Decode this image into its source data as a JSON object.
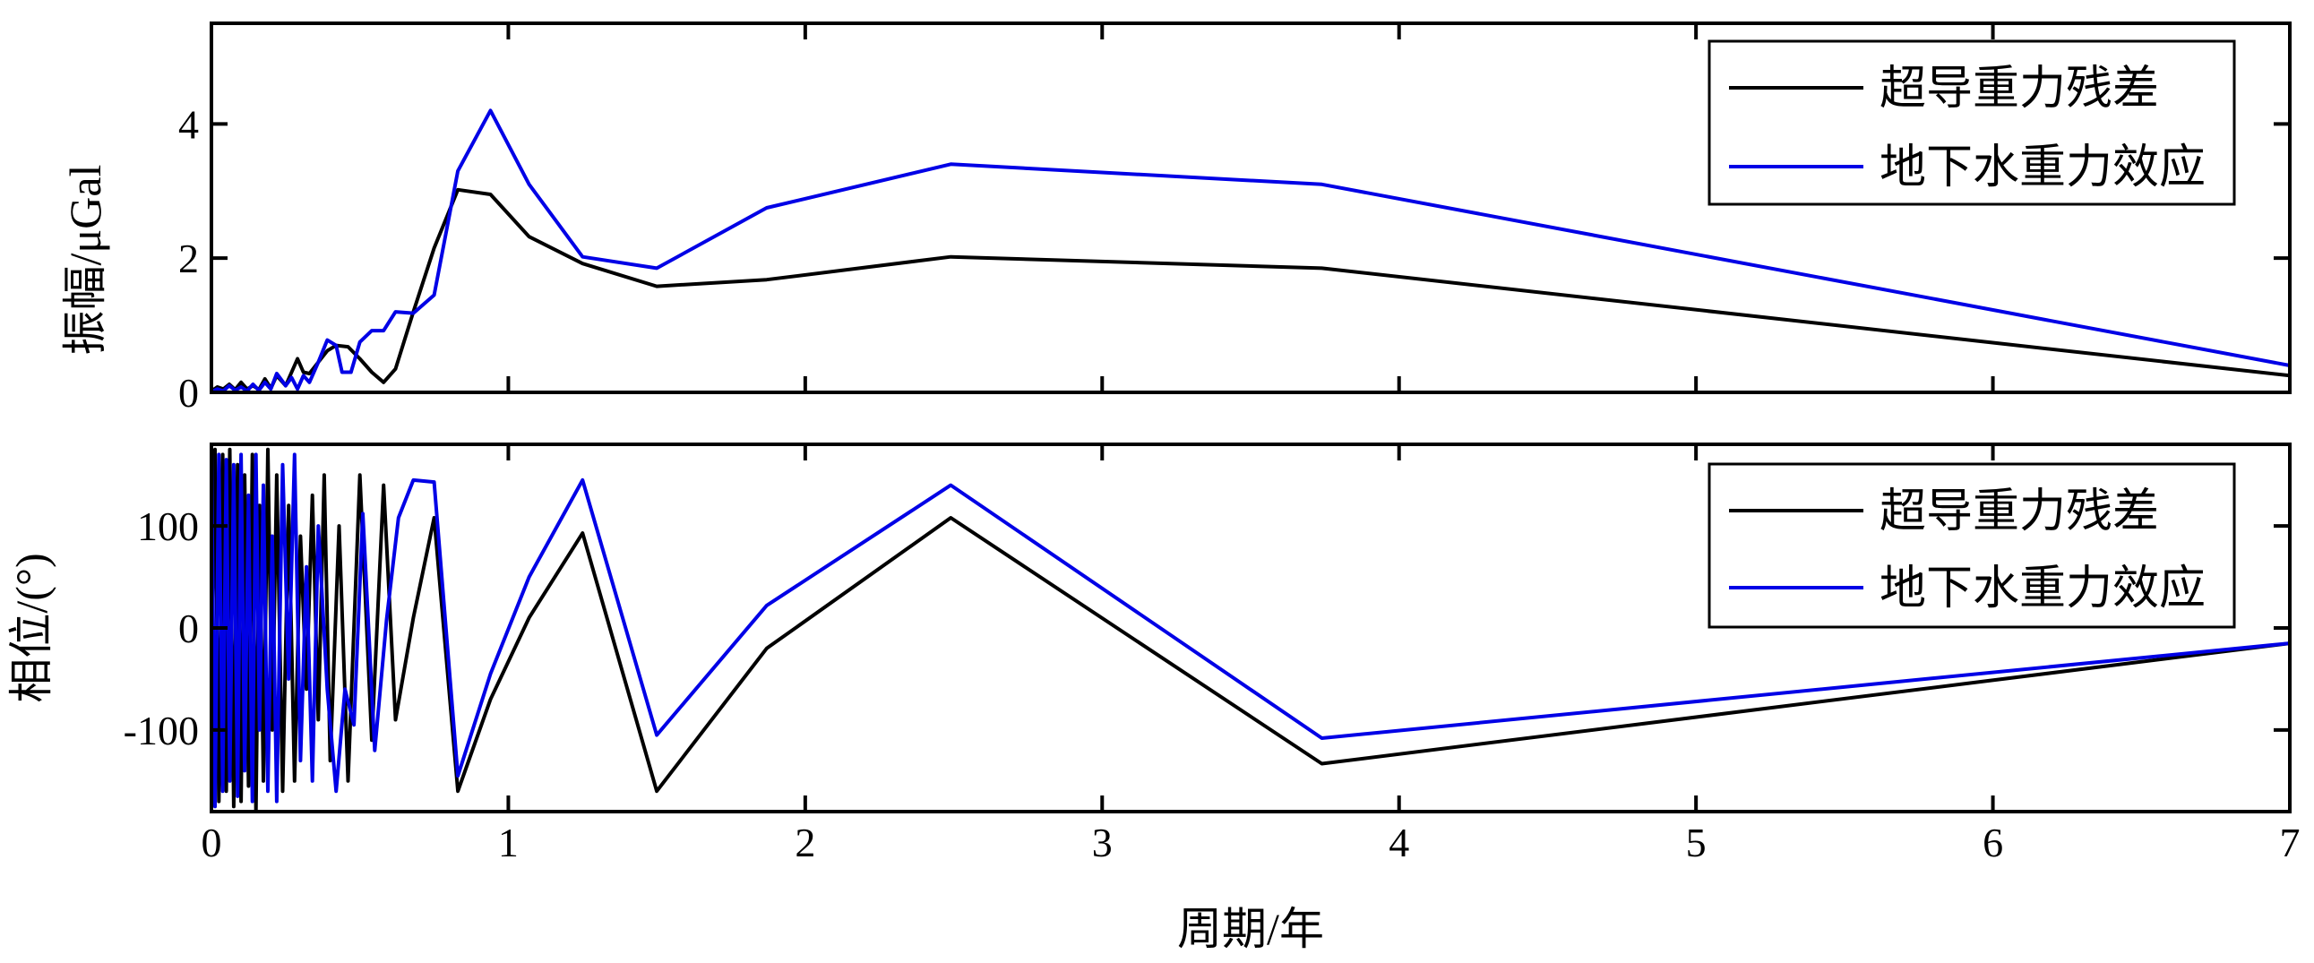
{
  "chart_data": [
    {
      "type": "line",
      "xlabel": "",
      "ylabel": "振幅/μGal",
      "xlim": [
        0,
        7
      ],
      "ylim": [
        0,
        5.5
      ],
      "yticks": [
        0,
        2,
        4
      ],
      "ytick_labels": [
        "0",
        "2",
        "4"
      ],
      "xticks": [
        0,
        1,
        2,
        3,
        4,
        5,
        6,
        7
      ],
      "show_xtick_labels": false,
      "grid": false,
      "legend_position": "top-right",
      "series": [
        {
          "name": "超导重力残差",
          "color": "#000000",
          "x": [
            0,
            0.02,
            0.04,
            0.06,
            0.08,
            0.1,
            0.12,
            0.14,
            0.16,
            0.18,
            0.2,
            0.22,
            0.25,
            0.27,
            0.29,
            0.31,
            0.33,
            0.36,
            0.39,
            0.42,
            0.46,
            0.5,
            0.54,
            0.58,
            0.62,
            0.68,
            0.75,
            0.83,
            0.94,
            1.07,
            1.25,
            1.5,
            1.87,
            2.49,
            3.74,
            7.0
          ],
          "y": [
            0.02,
            0.08,
            0.05,
            0.12,
            0.04,
            0.15,
            0.05,
            0.1,
            0.04,
            0.2,
            0.06,
            0.25,
            0.1,
            0.3,
            0.5,
            0.3,
            0.28,
            0.45,
            0.62,
            0.7,
            0.68,
            0.5,
            0.3,
            0.15,
            0.35,
            1.2,
            2.15,
            3.02,
            2.95,
            2.32,
            1.92,
            1.58,
            1.68,
            2.02,
            1.85,
            0.25
          ]
        },
        {
          "name": "地下水重力效应",
          "color": "#0000e6",
          "x": [
            0,
            0.02,
            0.04,
            0.06,
            0.08,
            0.1,
            0.12,
            0.14,
            0.16,
            0.18,
            0.2,
            0.22,
            0.25,
            0.27,
            0.29,
            0.31,
            0.33,
            0.36,
            0.39,
            0.42,
            0.44,
            0.47,
            0.5,
            0.54,
            0.58,
            0.62,
            0.68,
            0.75,
            0.83,
            0.94,
            1.07,
            1.25,
            1.5,
            1.87,
            2.49,
            3.74,
            7.0
          ],
          "y": [
            0.01,
            0.05,
            0.02,
            0.1,
            0.03,
            0.08,
            0.02,
            0.12,
            0.03,
            0.15,
            0.05,
            0.28,
            0.1,
            0.22,
            0.05,
            0.25,
            0.15,
            0.45,
            0.78,
            0.7,
            0.3,
            0.3,
            0.75,
            0.92,
            0.92,
            1.2,
            1.18,
            1.45,
            3.3,
            4.2,
            3.1,
            2.02,
            1.85,
            2.75,
            3.4,
            3.1,
            0.4
          ]
        }
      ]
    },
    {
      "type": "line",
      "xlabel": "周期/年",
      "ylabel": "相位/(°)",
      "xlim": [
        0,
        7
      ],
      "ylim": [
        -180,
        180
      ],
      "yticks": [
        -100,
        0,
        100
      ],
      "ytick_labels": [
        "-100",
        "0",
        "100"
      ],
      "xticks": [
        0,
        1,
        2,
        3,
        4,
        5,
        6,
        7
      ],
      "xtick_labels": [
        "0",
        "1",
        "2",
        "3",
        "4",
        "5",
        "6",
        "7"
      ],
      "grid": false,
      "legend_position": "top-right",
      "series": [
        {
          "name": "超导重力残差",
          "color": "#000000",
          "x": [
            0,
            0.012,
            0.025,
            0.038,
            0.05,
            0.062,
            0.075,
            0.088,
            0.1,
            0.112,
            0.125,
            0.138,
            0.15,
            0.162,
            0.175,
            0.19,
            0.205,
            0.22,
            0.24,
            0.26,
            0.28,
            0.3,
            0.32,
            0.34,
            0.36,
            0.38,
            0.4,
            0.43,
            0.46,
            0.5,
            0.54,
            0.58,
            0.62,
            0.68,
            0.75,
            0.83,
            0.94,
            1.07,
            1.25,
            1.5,
            1.87,
            2.49,
            3.74,
            7.0
          ],
          "y": [
            -60,
            175,
            -170,
            170,
            -160,
            175,
            -175,
            160,
            -170,
            150,
            -155,
            170,
            -180,
            120,
            -150,
            175,
            -100,
            150,
            -160,
            120,
            -150,
            90,
            -60,
            130,
            -90,
            150,
            -130,
            100,
            -150,
            150,
            -110,
            140,
            -90,
            10,
            108,
            -160,
            -70,
            10,
            93,
            -160,
            -20,
            108,
            -133,
            -15
          ]
        },
        {
          "name": "地下水重力效应",
          "color": "#0000e6",
          "x": [
            0,
            0.012,
            0.025,
            0.038,
            0.05,
            0.062,
            0.075,
            0.088,
            0.1,
            0.112,
            0.125,
            0.138,
            0.15,
            0.162,
            0.175,
            0.19,
            0.205,
            0.22,
            0.24,
            0.26,
            0.28,
            0.3,
            0.32,
            0.34,
            0.36,
            0.39,
            0.42,
            0.45,
            0.48,
            0.51,
            0.55,
            0.59,
            0.63,
            0.68,
            0.75,
            0.83,
            0.94,
            1.07,
            1.25,
            1.5,
            1.87,
            2.49,
            3.74,
            7.0
          ],
          "y": [
            175,
            -175,
            170,
            -160,
            165,
            -150,
            160,
            -165,
            170,
            -140,
            130,
            -170,
            170,
            -100,
            140,
            -160,
            90,
            -170,
            160,
            -50,
            170,
            -130,
            60,
            -150,
            100,
            -60,
            -160,
            -60,
            -95,
            112,
            -120,
            8,
            108,
            145,
            143,
            -145,
            -45,
            50,
            145,
            -105,
            22,
            140,
            -108,
            -15
          ]
        }
      ]
    }
  ]
}
